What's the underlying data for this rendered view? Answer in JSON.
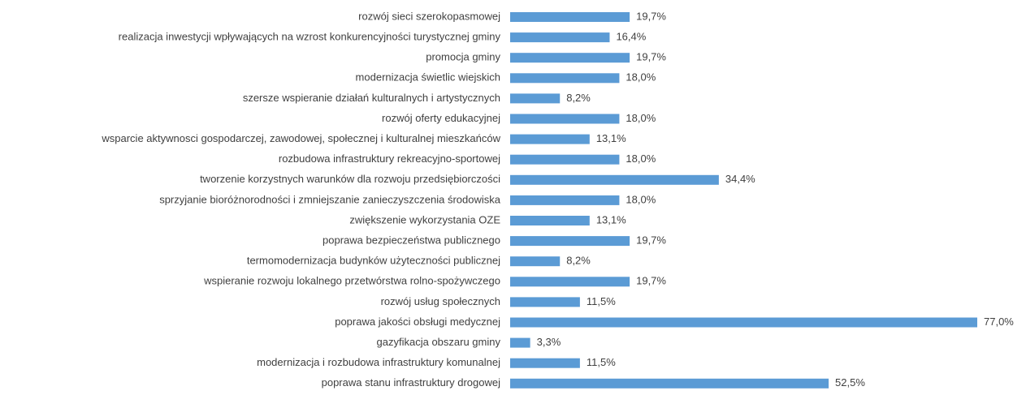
{
  "chart_data": {
    "type": "bar",
    "orientation": "horizontal",
    "color": "#5b9bd5",
    "categories": [
      "rozwój sieci szerokopasmowej",
      "realizacja inwestycji wpływających na wzrost konkurencyjności turystycznej gminy",
      "promocja gminy",
      "modernizacja świetlic wiejskich",
      "szersze wspieranie działań kulturalnych i artystycznych",
      "rozwój oferty edukacyjnej",
      "wsparcie aktywnosci gospodarczej, zawodowej, społecznej i kulturalnej mieszkańców",
      "rozbudowa infrastruktury rekreacyjno-sportowej",
      "tworzenie korzystnych warunków dla rozwoju przedsiębiorczości",
      "sprzyjanie bioróżnorodności i zmniejszanie zanieczyszczenia środowiska",
      "zwiększenie wykorzystania OZE",
      "poprawa bezpieczeństwa publicznego",
      "termomodernizacja budynków użyteczności publicznej",
      "wspieranie rozwoju lokalnego przetwórstwa rolno-spożywczego",
      "rozwój usług społecznych",
      "poprawa jakości obsługi medycznej",
      "gazyfikacja obszaru gminy",
      "modernizacja i rozbudowa infrastruktury komunalnej",
      "poprawa stanu infrastruktury drogowej"
    ],
    "values": [
      19.7,
      16.4,
      19.7,
      18.0,
      8.2,
      18.0,
      13.1,
      18.0,
      34.4,
      18.0,
      13.1,
      19.7,
      8.2,
      19.7,
      11.5,
      77.0,
      3.3,
      11.5,
      52.5
    ],
    "value_labels": [
      "19,7%",
      "16,4%",
      "19,7%",
      "18,0%",
      "8,2%",
      "18,0%",
      "13,1%",
      "18,0%",
      "34,4%",
      "18,0%",
      "13,1%",
      "19,7%",
      "8,2%",
      "19,7%",
      "11,5%",
      "77,0%",
      "3,3%",
      "11,5%",
      "52,5%"
    ]
  }
}
